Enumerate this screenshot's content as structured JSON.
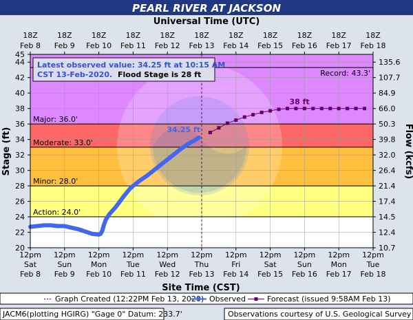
{
  "chart_data": {
    "type": "line",
    "title": "PEARL RIVER AT JACKSON",
    "top_axis_title": "Universal Time (UTC)",
    "bottom_axis_title": "Site Time (CST)",
    "ylabel": "Stage (ft)",
    "y2label": "Flow (kcfs)",
    "ylim": [
      20,
      45
    ],
    "y_ticks": [
      20,
      22,
      24,
      26,
      28,
      30,
      32,
      34,
      36,
      38,
      40,
      42,
      44,
      45
    ],
    "x_range_days": [
      "Feb 8 12pm",
      "Feb 18 12pm"
    ],
    "top_ticks": [
      {
        "line1": "18Z",
        "line2": "Feb 8"
      },
      {
        "line1": "18Z",
        "line2": "Feb 9"
      },
      {
        "line1": "18Z",
        "line2": "Feb 10"
      },
      {
        "line1": "18Z",
        "line2": "Feb 11"
      },
      {
        "line1": "18Z",
        "line2": "Feb 12"
      },
      {
        "line1": "18Z",
        "line2": "Feb 13"
      },
      {
        "line1": "18Z",
        "line2": "Feb 14"
      },
      {
        "line1": "18Z",
        "line2": "Feb 15"
      },
      {
        "line1": "18Z",
        "line2": "Feb 16"
      },
      {
        "line1": "18Z",
        "line2": "Feb 17"
      },
      {
        "line1": "18Z",
        "line2": "Feb 18"
      }
    ],
    "bottom_ticks": [
      {
        "line1": "12pm",
        "line2": "Sat",
        "line3": "Feb 8"
      },
      {
        "line1": "12pm",
        "line2": "Sun",
        "line3": "Feb 9"
      },
      {
        "line1": "12pm",
        "line2": "Mon",
        "line3": "Feb 10"
      },
      {
        "line1": "12pm",
        "line2": "Tue",
        "line3": "Feb 11"
      },
      {
        "line1": "12pm",
        "line2": "Wed",
        "line3": "Feb 12"
      },
      {
        "line1": "12pm",
        "line2": "Thu",
        "line3": "Feb 13"
      },
      {
        "line1": "12pm",
        "line2": "Fri",
        "line3": "Feb 14"
      },
      {
        "line1": "12pm",
        "line2": "Sat",
        "line3": "Feb 15"
      },
      {
        "line1": "12pm",
        "line2": "Sun",
        "line3": "Feb 16"
      },
      {
        "line1": "12pm",
        "line2": "Mon",
        "line3": "Feb 17"
      },
      {
        "line1": "12pm",
        "line2": "Tue",
        "line3": "Feb 18"
      }
    ],
    "flow_ticks": [
      {
        "stage": 20,
        "label": "10.7"
      },
      {
        "stage": 22,
        "label": "12.4"
      },
      {
        "stage": 24,
        "label": "14.5"
      },
      {
        "stage": 26,
        "label": "17.4"
      },
      {
        "stage": 28,
        "label": "21.4"
      },
      {
        "stage": 30,
        "label": "26.4"
      },
      {
        "stage": 32,
        "label": "32.0"
      },
      {
        "stage": 34,
        "label": "39.8"
      },
      {
        "stage": 36,
        "label": "50.3"
      },
      {
        "stage": 38,
        "label": "66.0"
      },
      {
        "stage": 40,
        "label": "84.9"
      },
      {
        "stage": 42,
        "label": "107.7"
      },
      {
        "stage": 44,
        "label": "135.6"
      }
    ],
    "bands": [
      {
        "name": "below-action",
        "from": 20,
        "to": 24,
        "color": "#ffffff"
      },
      {
        "name": "action",
        "from": 24,
        "to": 28,
        "color": "#ffff80"
      },
      {
        "name": "minor",
        "from": 28,
        "to": 33,
        "color": "#ffc040"
      },
      {
        "name": "moderate",
        "from": 33,
        "to": 36,
        "color": "#ff6666"
      },
      {
        "name": "major",
        "from": 36,
        "to": 45,
        "color": "#dd88ff"
      }
    ],
    "stage_lines": [
      {
        "label": "Action: 24.0'",
        "value": 24.0
      },
      {
        "label": "Minor: 28.0'",
        "value": 28.0
      },
      {
        "label": "Moderate: 33.0'",
        "value": 33.0
      },
      {
        "label": "Major: 36.0'",
        "value": 36.0
      }
    ],
    "record_label": "Record: 43.3'",
    "record_value": 43.3,
    "graph_created_day": 5.0,
    "info_box": {
      "line1": "Latest observed value: 34.25 ft at 10:15 AM",
      "line2a": "CST 13-Feb-2020.",
      "line2b": "Flood Stage is 28 ft"
    },
    "observed_label": "34.25 ft",
    "forecast_label": "38 ft",
    "series": [
      {
        "name": "Observed",
        "color": "#4466ee",
        "x_days": [
          0.0,
          0.2,
          0.4,
          0.6,
          0.8,
          1.0,
          1.2,
          1.4,
          1.6,
          1.8,
          2.0,
          2.05,
          2.1,
          2.15,
          2.2,
          2.3,
          2.5,
          2.7,
          2.9,
          3.0,
          3.2,
          3.4,
          3.6,
          3.8,
          4.0,
          4.2,
          4.4,
          4.6,
          4.8,
          4.92
        ],
        "y": [
          22.7,
          22.8,
          22.9,
          22.9,
          22.8,
          22.8,
          22.6,
          22.4,
          22.1,
          21.8,
          21.7,
          21.8,
          22.2,
          23.0,
          23.6,
          24.3,
          25.3,
          26.5,
          27.6,
          28.0,
          28.7,
          29.3,
          30.0,
          30.7,
          31.4,
          32.1,
          32.8,
          33.4,
          33.9,
          34.25
        ]
      },
      {
        "name": "Forecast (issued 9:58AM Feb 13)",
        "color": "#660066",
        "x_days": [
          5.25,
          5.5,
          5.75,
          6.0,
          6.25,
          6.5,
          6.75,
          7.0,
          7.25,
          7.5,
          7.75,
          8.0,
          8.25,
          8.5,
          8.75,
          9.0,
          9.25,
          9.5,
          9.75
        ],
        "y": [
          34.9,
          35.5,
          36.1,
          36.5,
          36.9,
          37.2,
          37.5,
          37.7,
          37.9,
          38.0,
          38.0,
          38.0,
          38.0,
          38.0,
          38.0,
          38.0,
          38.0,
          38.0,
          38.0
        ]
      }
    ],
    "legend": {
      "created": "Graph Created (12:22PM Feb 13, 2020)",
      "observed": "Observed",
      "forecast": "Forecast (issued 9:58AM Feb 13)"
    },
    "footer": {
      "left": "JACM6(plotting HGIRG) \"Gage 0\" Datum: 233.7'",
      "right": "Observations courtesy of U.S. Geological Survey"
    }
  },
  "colors": {
    "title_bar": "#203884",
    "outer_bg": "#dde3ec",
    "observed": "#4466ee",
    "forecast": "#660066",
    "info_text": "#3355cc"
  }
}
